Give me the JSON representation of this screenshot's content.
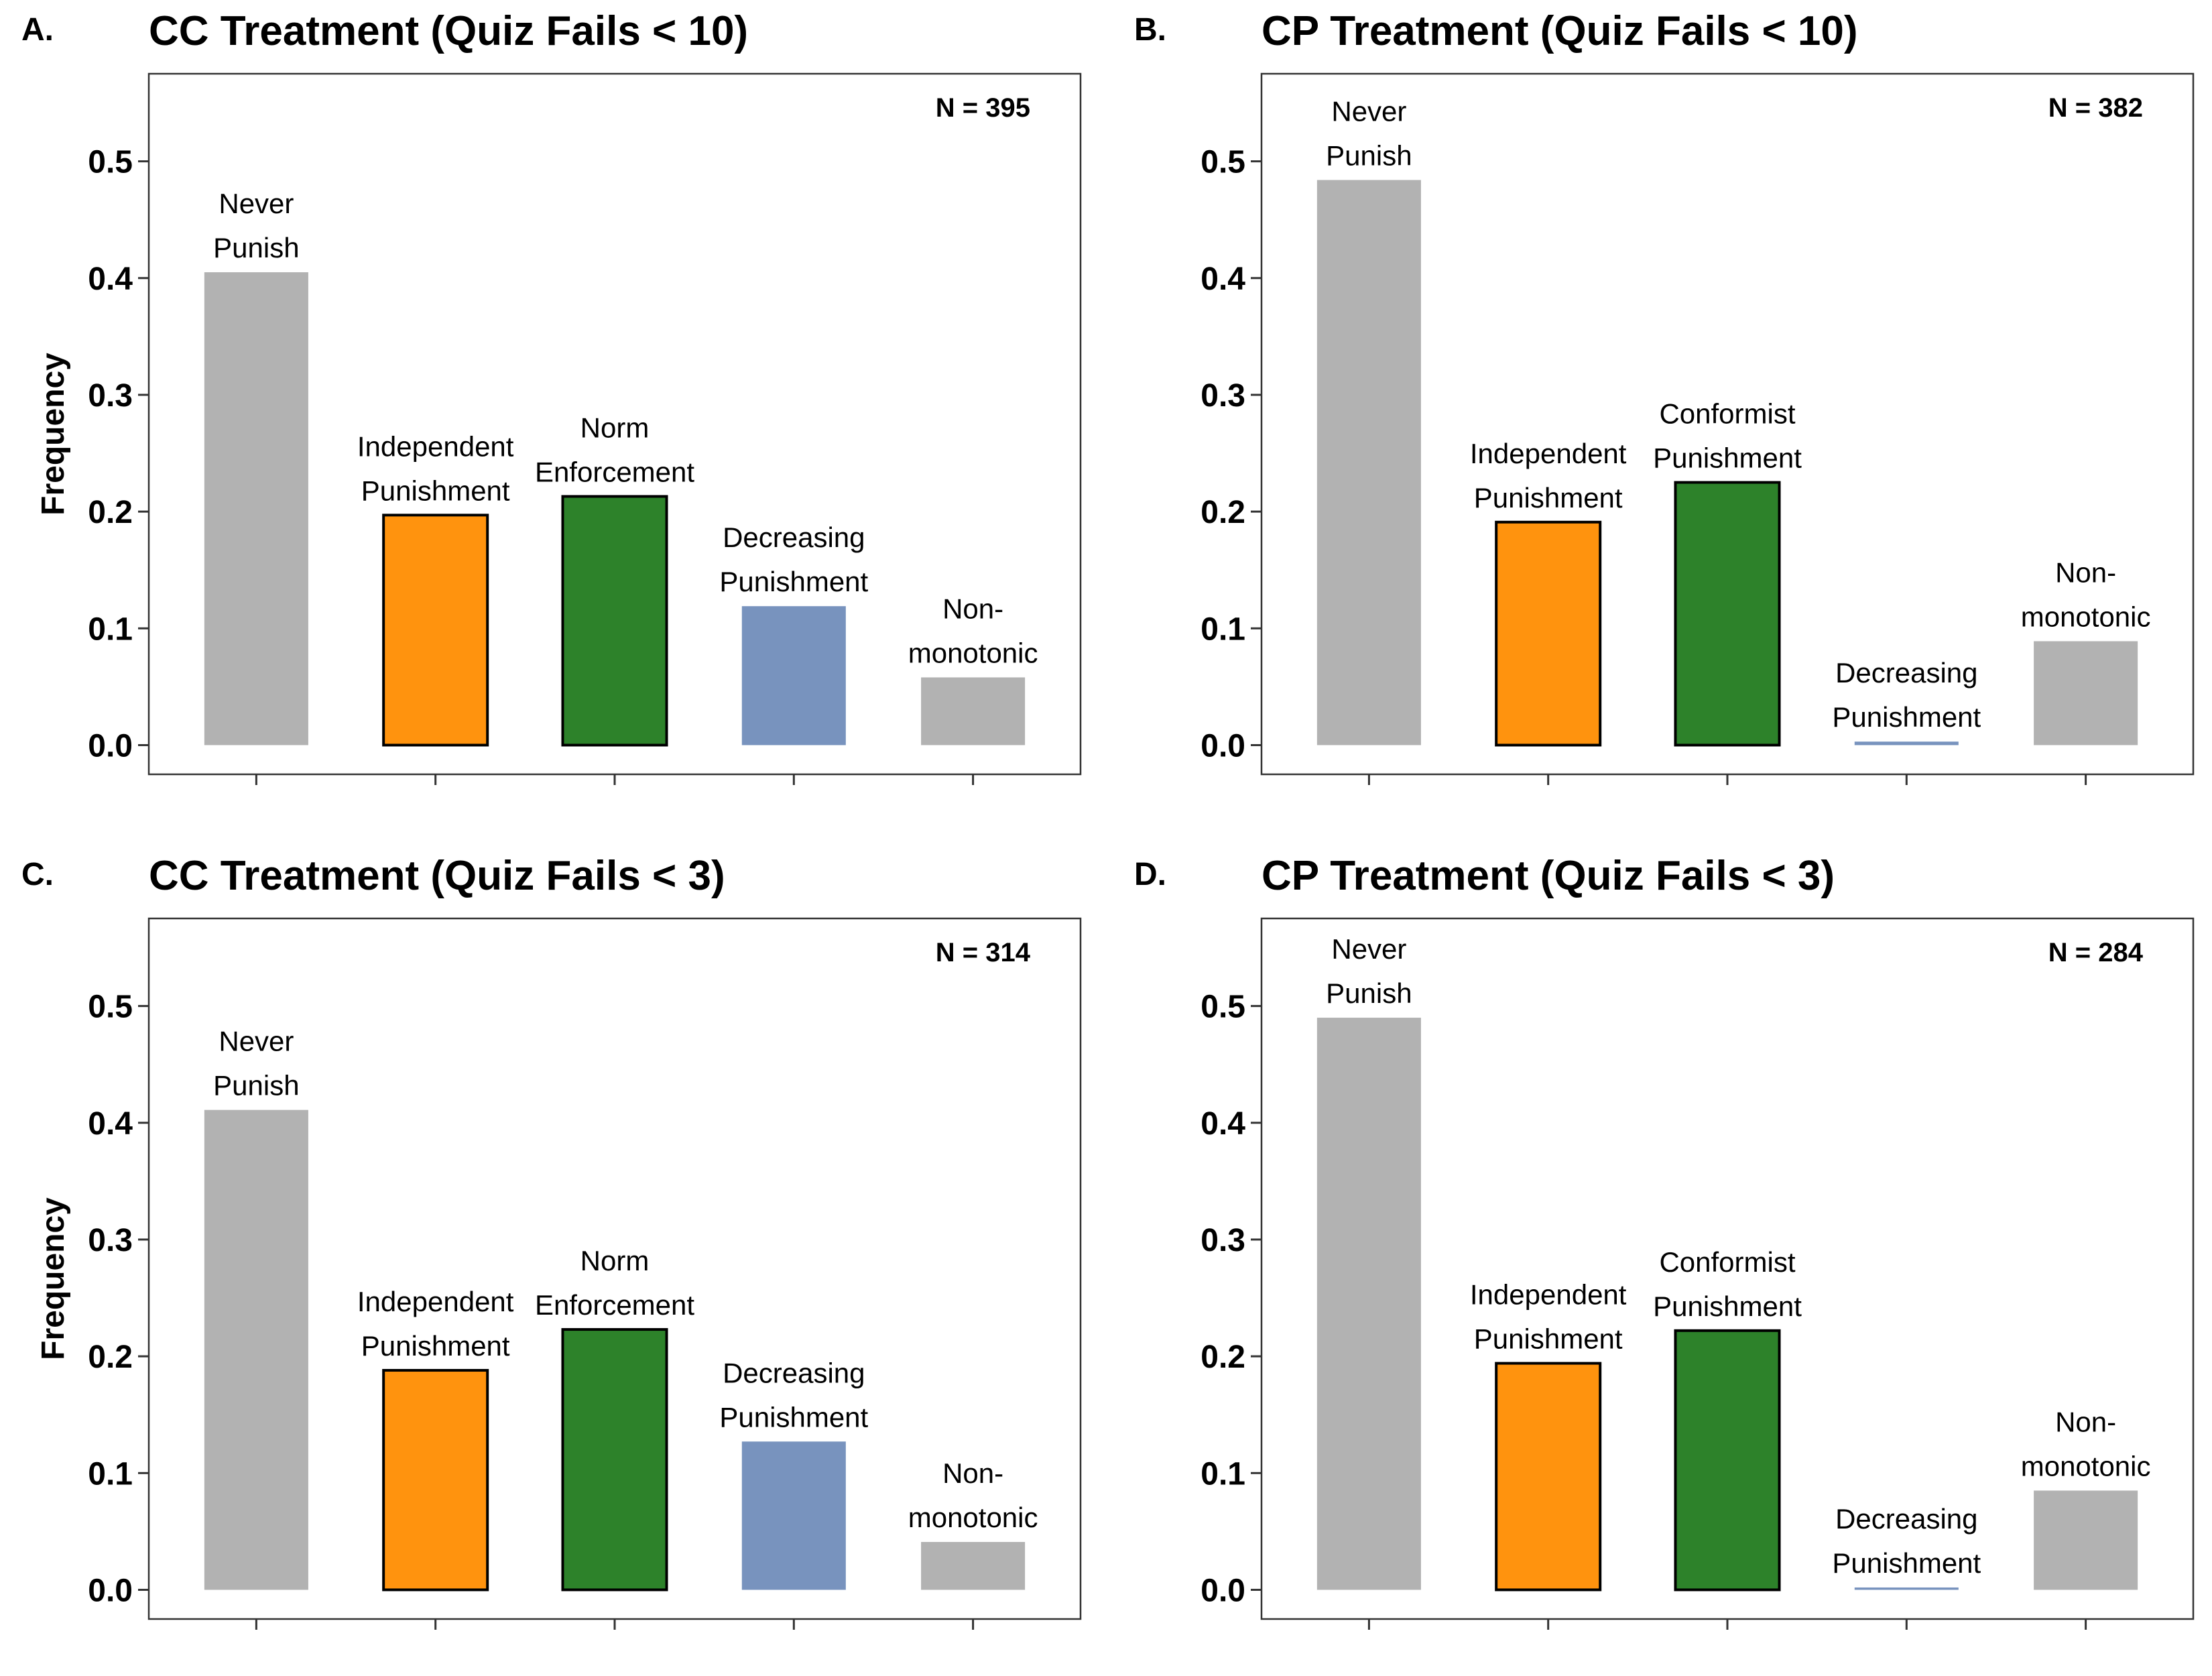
{
  "colors": {
    "gray": "#b2b2b2",
    "orange": "#ff930e",
    "green": "#2d822a",
    "blue": "#7893be"
  },
  "chart_data": [
    {
      "type": "bar",
      "panel": "A.",
      "title": "CC Treatment (Quiz Fails < 10)",
      "ylabel": "Frequency",
      "n_label": "N = 395",
      "ylim": [
        -0.025,
        0.575
      ],
      "yticks": [
        "0.0",
        "0.1",
        "0.2",
        "0.3",
        "0.4",
        "0.5"
      ],
      "grid": false,
      "categories": [
        {
          "label": [
            "Never",
            "Punish"
          ],
          "value": 0.405,
          "color": "#b2b2b2",
          "outlined": false
        },
        {
          "label": [
            "Independent",
            "Punishment"
          ],
          "value": 0.197,
          "color": "#ff930e",
          "outlined": true
        },
        {
          "label": [
            "Norm",
            "Enforcement"
          ],
          "value": 0.213,
          "color": "#2d822a",
          "outlined": true
        },
        {
          "label": [
            "Decreasing",
            "Punishment"
          ],
          "value": 0.119,
          "color": "#7893be",
          "outlined": false
        },
        {
          "label": [
            "Non-",
            "monotonic"
          ],
          "value": 0.058,
          "color": "#b2b2b2",
          "outlined": false
        }
      ]
    },
    {
      "type": "bar",
      "panel": "B.",
      "title": "CP Treatment (Quiz Fails < 10)",
      "ylabel": "",
      "n_label": "N = 382",
      "ylim": [
        -0.025,
        0.575
      ],
      "yticks": [
        "0.0",
        "0.1",
        "0.2",
        "0.3",
        "0.4",
        "0.5"
      ],
      "grid": false,
      "categories": [
        {
          "label": [
            "Never",
            "Punish"
          ],
          "value": 0.484,
          "color": "#b2b2b2",
          "outlined": false
        },
        {
          "label": [
            "Independent",
            "Punishment"
          ],
          "value": 0.191,
          "color": "#ff930e",
          "outlined": true
        },
        {
          "label": [
            "Conformist",
            "Punishment"
          ],
          "value": 0.225,
          "color": "#2d822a",
          "outlined": true
        },
        {
          "label": [
            "Decreasing",
            "Punishment"
          ],
          "value": 0.003,
          "color": "#7893be",
          "outlined": false
        },
        {
          "label": [
            "Non-",
            "monotonic"
          ],
          "value": 0.089,
          "color": "#b2b2b2",
          "outlined": false
        }
      ]
    },
    {
      "type": "bar",
      "panel": "C.",
      "title": "CC Treatment (Quiz Fails < 3)",
      "ylabel": "Frequency",
      "n_label": "N = 314",
      "ylim": [
        -0.025,
        0.575
      ],
      "yticks": [
        "0.0",
        "0.1",
        "0.2",
        "0.3",
        "0.4",
        "0.5"
      ],
      "grid": false,
      "categories": [
        {
          "label": [
            "Never",
            "Punish"
          ],
          "value": 0.411,
          "color": "#b2b2b2",
          "outlined": false
        },
        {
          "label": [
            "Independent",
            "Punishment"
          ],
          "value": 0.188,
          "color": "#ff930e",
          "outlined": true
        },
        {
          "label": [
            "Norm",
            "Enforcement"
          ],
          "value": 0.223,
          "color": "#2d822a",
          "outlined": true
        },
        {
          "label": [
            "Decreasing",
            "Punishment"
          ],
          "value": 0.127,
          "color": "#7893be",
          "outlined": false
        },
        {
          "label": [
            "Non-",
            "monotonic"
          ],
          "value": 0.041,
          "color": "#b2b2b2",
          "outlined": false
        }
      ]
    },
    {
      "type": "bar",
      "panel": "D.",
      "title": "CP Treatment (Quiz Fails < 3)",
      "ylabel": "",
      "n_label": "N = 284",
      "ylim": [
        -0.025,
        0.575
      ],
      "yticks": [
        "0.0",
        "0.1",
        "0.2",
        "0.3",
        "0.4",
        "0.5"
      ],
      "grid": false,
      "categories": [
        {
          "label": [
            "Never",
            "Punish"
          ],
          "value": 0.49,
          "color": "#b2b2b2",
          "outlined": false
        },
        {
          "label": [
            "Independent",
            "Punishment"
          ],
          "value": 0.194,
          "color": "#ff930e",
          "outlined": true
        },
        {
          "label": [
            "Conformist",
            "Punishment"
          ],
          "value": 0.222,
          "color": "#2d822a",
          "outlined": true
        },
        {
          "label": [
            "Decreasing",
            "Punishment"
          ],
          "value": 0.002,
          "color": "#7893be",
          "outlined": false
        },
        {
          "label": [
            "Non-",
            "monotonic"
          ],
          "value": 0.085,
          "color": "#b2b2b2",
          "outlined": false
        }
      ]
    }
  ]
}
